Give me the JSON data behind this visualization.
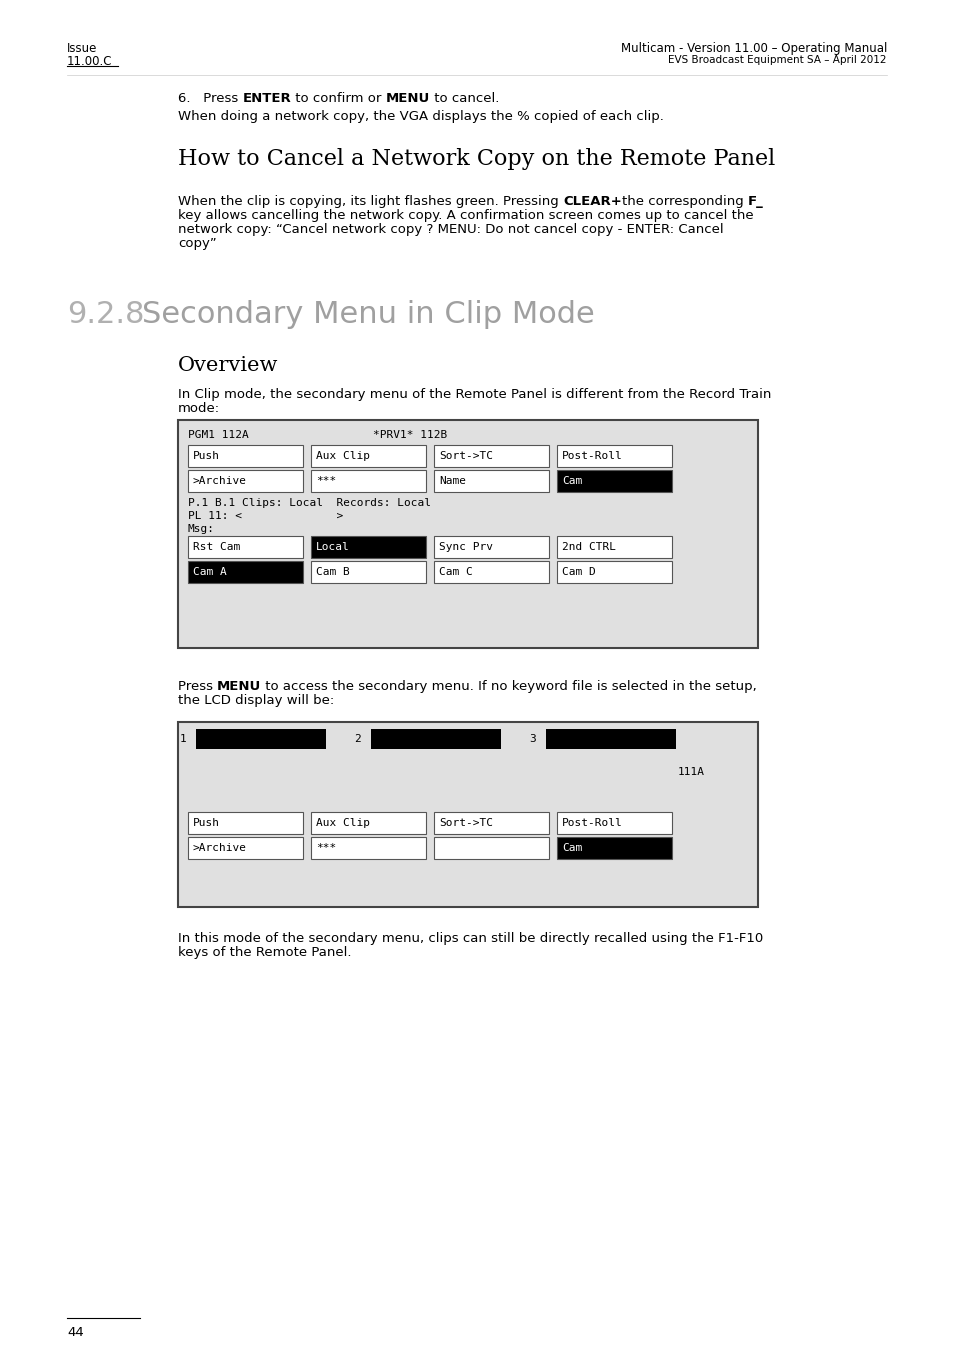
{
  "page_bg": "#ffffff",
  "header_left_line1": "Issue",
  "header_left_line2": "11.00.C",
  "header_right_line1": "Multicam - Version 11.00 – Operating Manual",
  "header_right_line2": "EVS Broadcast Equipment SA – April 2012",
  "network_copy_note": "When doing a network copy, the VGA displays the % copied of each clip.",
  "section_title": "How to Cancel a Network Copy on the Remote Panel",
  "subsection_num": "9.2.8",
  "subsection_title": "Secondary Menu in Clip Mode",
  "overview_title": "Overview",
  "overview_line1": "In Clip mode, the secondary menu of the Remote Panel is different from the Record Train",
  "overview_line2": "mode:",
  "diagram1_header_left": "PGM1 112A",
  "diagram1_header_right": "*PRV1* 112B",
  "diagram1_row1": [
    "Push",
    "Aux Clip",
    "Sort->TC",
    "Post-Roll"
  ],
  "diagram1_row2": [
    ">Archive",
    "***",
    "Name",
    "Cam"
  ],
  "diagram1_row2_black": [
    false,
    false,
    false,
    true
  ],
  "diagram1_info1": "P.1 B.1 Clips: Local  Records: Local",
  "diagram1_info2": "PL 11: <              >",
  "diagram1_msg": "Msg:",
  "diagram1_row3": [
    "Rst Cam",
    "Local",
    "Sync Prv",
    "2nd CTRL"
  ],
  "diagram1_row3_black": [
    false,
    true,
    false,
    false
  ],
  "diagram1_row4": [
    "Cam A",
    "Cam B",
    "Cam C",
    "Cam D"
  ],
  "diagram1_row4_black": [
    true,
    false,
    false,
    false
  ],
  "menu_line2": "the LCD display will be:",
  "diagram2_top_labels": [
    "1",
    "2",
    "3"
  ],
  "diagram2_top_label_text": "111A",
  "diagram2_row1": [
    "Push",
    "Aux Clip",
    "Sort->TC",
    "Post-Roll"
  ],
  "diagram2_row2": [
    ">Archive",
    "***",
    "",
    "Cam"
  ],
  "diagram2_row2_black": [
    false,
    false,
    false,
    true
  ],
  "final_line1": "In this mode of the secondary menu, clips can still be directly recalled using the F1-F10",
  "final_line2": "keys of the Remote Panel.",
  "footer_page": "44",
  "mono_font": "DejaVu Sans Mono",
  "sans_font": "DejaVu Sans",
  "serif_font": "DejaVu Serif",
  "diagram_bg": "#e0e0e0",
  "diagram_border": "#444444",
  "btn_border": "#555555"
}
